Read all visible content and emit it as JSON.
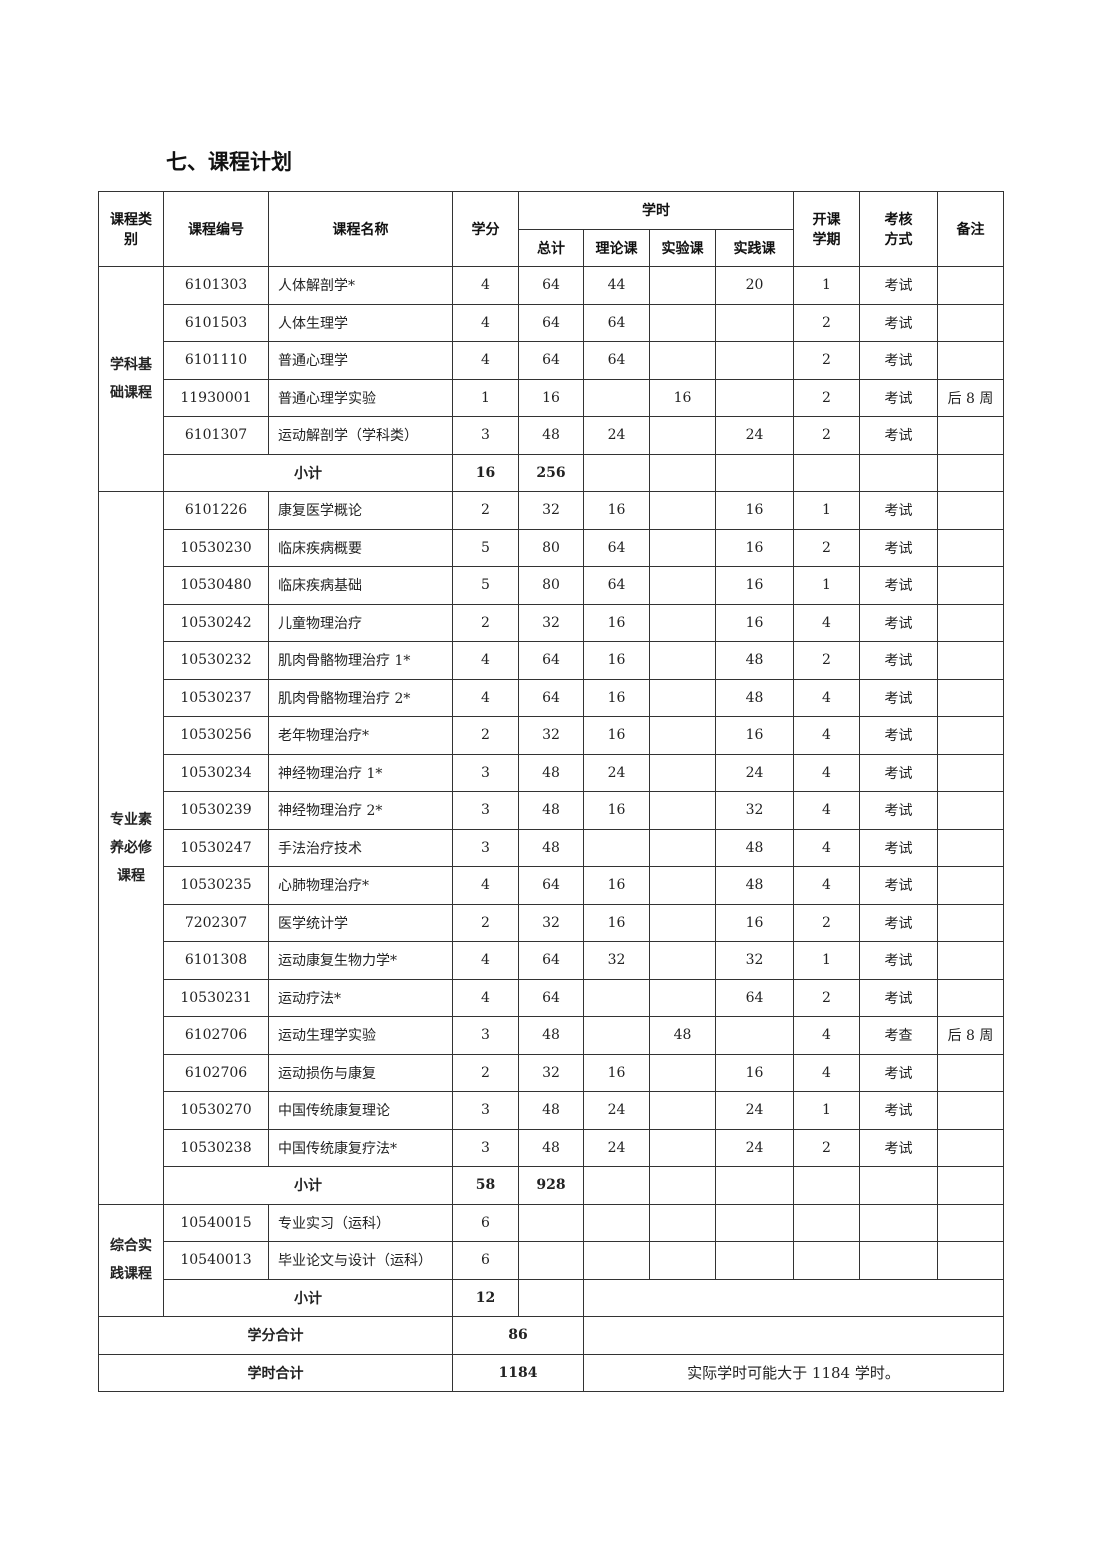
{
  "title": "七、课程计划",
  "headers": {
    "category": "课程类别",
    "code": "课程编号",
    "name": "课程名称",
    "credits": "学分",
    "hours": "学时",
    "total": "总计",
    "theory": "理论课",
    "lab": "实验课",
    "practice": "实践课",
    "semester": "开课学期",
    "assessment": "考核方式",
    "remarks": "备注"
  },
  "sections": [
    {
      "category": "学科基础课程",
      "rows": [
        [
          "6101303",
          "人体解剖学*",
          "4",
          "64",
          "44",
          "",
          "20",
          "1",
          "考试",
          ""
        ],
        [
          "6101503",
          "人体生理学",
          "4",
          "64",
          "64",
          "",
          "",
          "2",
          "考试",
          ""
        ],
        [
          "6101110",
          "普通心理学",
          "4",
          "64",
          "64",
          "",
          "",
          "2",
          "考试",
          ""
        ],
        [
          "11930001",
          "普通心理学实验",
          "1",
          "16",
          "",
          "16",
          "",
          "2",
          "考试",
          "后 8 周"
        ],
        [
          "6101307",
          "运动解剖学（学科类）",
          "3",
          "48",
          "24",
          "",
          "24",
          "2",
          "考试",
          ""
        ]
      ],
      "subtotal": {
        "label": "小计",
        "credits": "16",
        "hours": "256"
      }
    },
    {
      "category": "专业素养必修课程",
      "rows": [
        [
          "6101226",
          "康复医学概论",
          "2",
          "32",
          "16",
          "",
          "16",
          "1",
          "考试",
          ""
        ],
        [
          "10530230",
          "临床疾病概要",
          "5",
          "80",
          "64",
          "",
          "16",
          "2",
          "考试",
          ""
        ],
        [
          "10530480",
          "临床疾病基础",
          "5",
          "80",
          "64",
          "",
          "16",
          "1",
          "考试",
          ""
        ],
        [
          "10530242",
          "儿童物理治疗",
          "2",
          "32",
          "16",
          "",
          "16",
          "4",
          "考试",
          ""
        ],
        [
          "10530232",
          "肌肉骨骼物理治疗 1*",
          "4",
          "64",
          "16",
          "",
          "48",
          "2",
          "考试",
          ""
        ],
        [
          "10530237",
          "肌肉骨骼物理治疗 2*",
          "4",
          "64",
          "16",
          "",
          "48",
          "4",
          "考试",
          ""
        ],
        [
          "10530256",
          "老年物理治疗*",
          "2",
          "32",
          "16",
          "",
          "16",
          "4",
          "考试",
          ""
        ],
        [
          "10530234",
          "神经物理治疗 1*",
          "3",
          "48",
          "24",
          "",
          "24",
          "4",
          "考试",
          ""
        ],
        [
          "10530239",
          "神经物理治疗 2*",
          "3",
          "48",
          "16",
          "",
          "32",
          "4",
          "考试",
          ""
        ],
        [
          "10530247",
          "手法治疗技术",
          "3",
          "48",
          "",
          "",
          "48",
          "4",
          "考试",
          ""
        ],
        [
          "10530235",
          "心肺物理治疗*",
          "4",
          "64",
          "16",
          "",
          "48",
          "4",
          "考试",
          ""
        ],
        [
          "7202307",
          "医学统计学",
          "2",
          "32",
          "16",
          "",
          "16",
          "2",
          "考试",
          ""
        ],
        [
          "6101308",
          "运动康复生物力学*",
          "4",
          "64",
          "32",
          "",
          "32",
          "1",
          "考试",
          ""
        ],
        [
          "10530231",
          "运动疗法*",
          "4",
          "64",
          "",
          "",
          "64",
          "2",
          "考试",
          ""
        ],
        [
          "6102706",
          "运动生理学实验",
          "3",
          "48",
          "",
          "48",
          "",
          "4",
          "考查",
          "后 8 周"
        ],
        [
          "6102706",
          "运动损伤与康复",
          "2",
          "32",
          "16",
          "",
          "16",
          "4",
          "考试",
          ""
        ],
        [
          "10530270",
          "中国传统康复理论",
          "3",
          "48",
          "24",
          "",
          "24",
          "1",
          "考试",
          ""
        ],
        [
          "10530238",
          "中国传统康复疗法*",
          "3",
          "48",
          "24",
          "",
          "24",
          "2",
          "考试",
          ""
        ]
      ],
      "subtotal": {
        "label": "小计",
        "credits": "58",
        "hours": "928"
      }
    },
    {
      "category": "综合实践课程",
      "rows": [
        [
          "10540015",
          "专业实习（运科）",
          "6",
          "",
          "",
          "",
          "",
          "",
          "",
          ""
        ],
        [
          "10540013",
          "毕业论文与设计（运科）",
          "6",
          "",
          "",
          "",
          "",
          "",
          "",
          ""
        ]
      ],
      "subtotal": {
        "label": "小计",
        "credits": "12",
        "hours": ""
      }
    }
  ],
  "totals": {
    "credits_label": "学分合计",
    "credits_value": "86",
    "hours_label": "学时合计",
    "hours_value": "1184",
    "hours_note": "实际学时可能大于 1184 学时。"
  }
}
